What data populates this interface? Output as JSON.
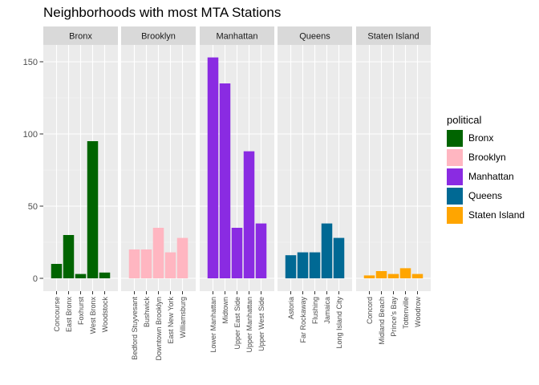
{
  "chart_data": {
    "type": "bar",
    "title": "Neighborhoods with most MTA Stations",
    "xlabel": "",
    "ylabel": "",
    "ylim": [
      0,
      160
    ],
    "yticks": [
      0,
      50,
      100,
      150
    ],
    "grid": true,
    "legend": {
      "title": "political",
      "placement": "right"
    },
    "facets": [
      {
        "name": "Bronx",
        "color": "#006400",
        "categories": [
          "Concourse",
          "East Bronx",
          "Foxhurst",
          "West Bronx",
          "Woodstock"
        ],
        "values": [
          10,
          30,
          3,
          95,
          4
        ]
      },
      {
        "name": "Brooklyn",
        "color": "#FFB6C1",
        "categories": [
          "Bedford Stuyvesant",
          "Bushwick",
          "Downtown Brooklyn",
          "East New York",
          "Williamsburg"
        ],
        "values": [
          20,
          20,
          35,
          18,
          28
        ]
      },
      {
        "name": "Manhattan",
        "color": "#8A2BE2",
        "categories": [
          "Lower Manhattan",
          "Midtown",
          "Upper East Side",
          "Upper Manhattan",
          "Upper West Side"
        ],
        "values": [
          153,
          135,
          35,
          88,
          38
        ]
      },
      {
        "name": "Queens",
        "color": "#006994",
        "categories": [
          "Astoria",
          "Far Rockaway",
          "Flushing",
          "Jamaica",
          "Long Island City"
        ],
        "values": [
          16,
          18,
          18,
          38,
          28
        ]
      },
      {
        "name": "Staten Island",
        "color": "#FFA500",
        "categories": [
          "Concord",
          "Midland Beach",
          "Prince's Bay",
          "Tottenville",
          "Woodrow"
        ],
        "values": [
          2,
          5,
          3,
          7,
          3
        ]
      }
    ]
  }
}
